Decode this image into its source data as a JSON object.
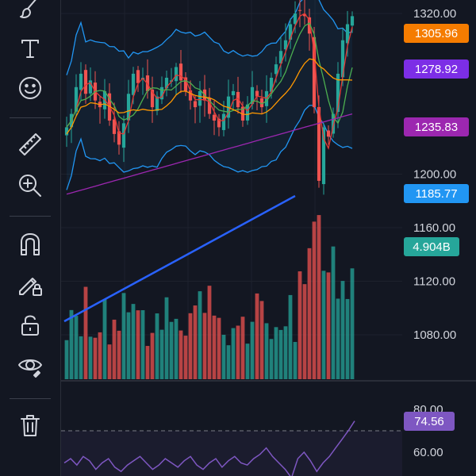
{
  "toolbar": {
    "tools": [
      {
        "name": "brush-tool",
        "icon": "brush-icon"
      },
      {
        "name": "text-tool",
        "icon": "text-icon"
      },
      {
        "name": "emoji-tool",
        "icon": "smiley-icon"
      },
      {
        "name": "ruler-tool",
        "icon": "ruler-icon"
      },
      {
        "name": "zoom-tool",
        "icon": "zoom-in-icon"
      },
      {
        "name": "magnet-tool",
        "icon": "magnet-icon"
      },
      {
        "name": "lock-drawings-tool",
        "icon": "pencil-lock-icon"
      },
      {
        "name": "unlock-tool",
        "icon": "unlock-icon"
      },
      {
        "name": "hide-drawings-tool",
        "icon": "eye-icon"
      },
      {
        "name": "delete-drawings-tool",
        "icon": "trash-icon"
      }
    ]
  },
  "price_axis": {
    "labels": [
      "1320.00",
      "1200.00",
      "1160.00",
      "1120.00",
      "1080.00"
    ],
    "label_values": [
      1320,
      1200,
      1160,
      1120,
      1080
    ],
    "range": [
      1050,
      1330
    ]
  },
  "badges": [
    {
      "text": "1305.96",
      "value": 1305.96,
      "color": "#f57c00"
    },
    {
      "text": "1278.92",
      "value": 1278.92,
      "color": "#7c2ee6"
    },
    {
      "text": "1235.83",
      "value": 1235.83,
      "color": "#9c27b0"
    },
    {
      "text": "1185.77",
      "value": 1185.77,
      "color": "#2196f3"
    },
    {
      "text": "4.904B",
      "value": 4.904,
      "color": "#26a69a"
    }
  ],
  "rsi_axis": {
    "labels": [
      "80.00",
      "60.00"
    ],
    "label_values": [
      80,
      60
    ],
    "range": [
      50,
      85
    ],
    "current": {
      "text": "74.56",
      "value": 74.56,
      "color": "#7e57c2"
    },
    "upper_band": 70,
    "lower_band": 30
  },
  "colors": {
    "up": "#26a69a",
    "down": "#ef5350",
    "grid": "#1e222d",
    "bollinger": "#2196f3",
    "ma_red": "#e53935",
    "ma_green": "#4caf50",
    "ma_orange": "#ff9800",
    "ma_purple": "#9c27b0",
    "trendline": "#2962ff",
    "rsi": "#7e57c2"
  }
}
